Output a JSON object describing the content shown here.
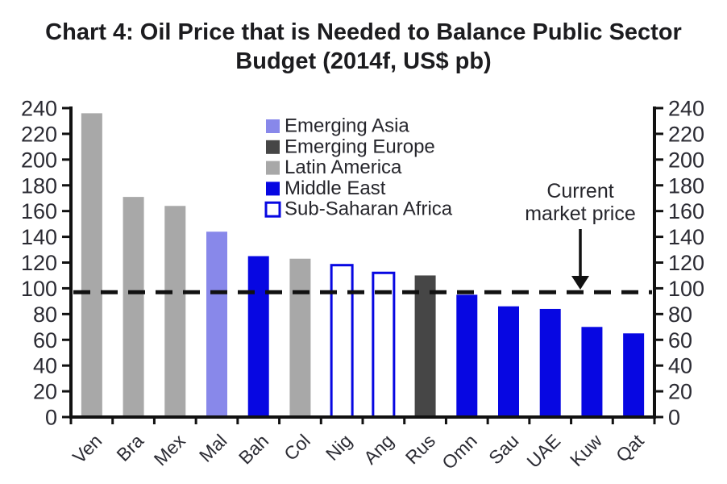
{
  "title": {
    "line1": "Chart 4: Oil Price that is Needed to Balance Public Sector",
    "line2": "Budget (2014f, US$ pb)"
  },
  "chart_data": {
    "type": "bar",
    "title": "Chart 4: Oil Price that is Needed to Balance Public Sector Budget (2014f, US$ pb)",
    "xlabel": "",
    "ylabel": "",
    "categories": [
      "Ven",
      "Bra",
      "Mex",
      "Mal",
      "Bah",
      "Col",
      "Nig",
      "Ang",
      "Rus",
      "Omn",
      "Sau",
      "UAE",
      "Kuw",
      "Qat"
    ],
    "values": [
      236,
      171,
      164,
      144,
      125,
      123,
      118,
      112,
      110,
      95,
      86,
      84,
      70,
      65
    ],
    "regions": [
      "Latin America",
      "Latin America",
      "Latin America",
      "Emerging Asia",
      "Middle East",
      "Latin America",
      "Sub-Saharan Africa",
      "Sub-Saharan Africa",
      "Emerging Europe",
      "Middle East",
      "Middle East",
      "Middle East",
      "Middle East",
      "Middle East"
    ],
    "ylim": [
      0,
      240
    ],
    "ytick_step": 20,
    "y_axis_sides": [
      "left",
      "right"
    ],
    "grid": false,
    "legend": {
      "position": "upper center-left inside plot",
      "entries": [
        {
          "label": "Emerging Asia",
          "color": "#8888ea",
          "filled": true
        },
        {
          "label": "Emerging Europe",
          "color": "#464646",
          "filled": true
        },
        {
          "label": "Latin America",
          "color": "#a8a8a8",
          "filled": true
        },
        {
          "label": "Middle East",
          "color": "#0707e2",
          "filled": true
        },
        {
          "label": "Sub-Saharan Africa",
          "color": "#0707e2",
          "filled": false
        }
      ]
    },
    "reference_line": {
      "value": 97,
      "style": "dashed",
      "color": "#111111",
      "annotation": {
        "line1": "Current",
        "line2": "market price"
      }
    },
    "colors": {
      "axis": "#111111",
      "tick_text": "#2b2b33",
      "annotation_text": "#26262c",
      "outline_bar_fill": "#ffffff"
    }
  }
}
